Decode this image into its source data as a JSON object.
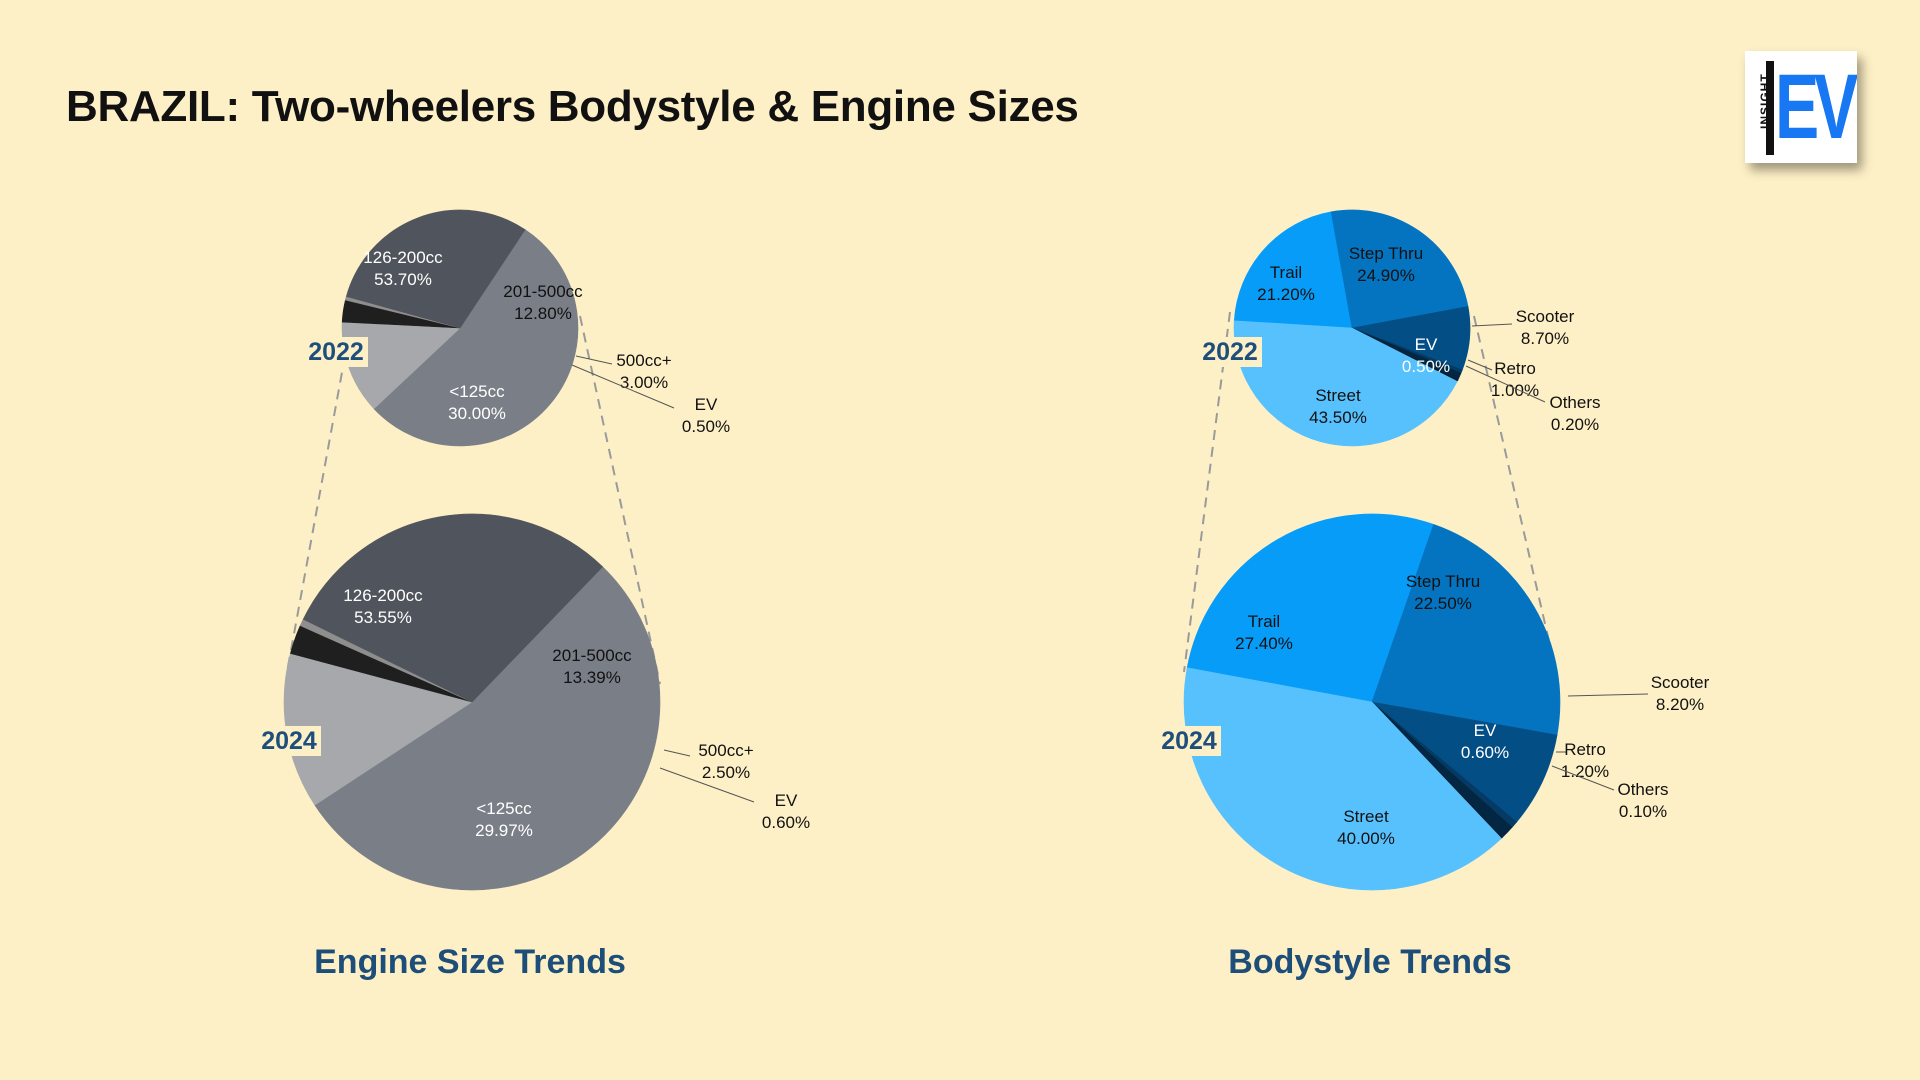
{
  "title": "BRAZIL: Two-wheelers Bodystyle & Engine Sizes",
  "logo": {
    "small_text": "INSIGHT",
    "big_text": "EV",
    "color": "#1877F2"
  },
  "chart_data": [
    {
      "type": "pie",
      "title": "Engine Size Trends",
      "pies": [
        {
          "year": "2022",
          "slices": [
            {
              "label": "126-200cc",
              "value": 53.7,
              "value_label": "53.70%",
              "color": "#7A7F87"
            },
            {
              "label": "201-500cc",
              "value": 12.8,
              "value_label": "12.80%",
              "color": "#A6A8AB"
            },
            {
              "label": "500cc+",
              "value": 3.0,
              "value_label": "3.00%",
              "color": "#1F1F1F"
            },
            {
              "label": "EV",
              "value": 0.5,
              "value_label": "0.50%",
              "color": "#8E8E8E"
            },
            {
              "label": "<125cc",
              "value": 30.0,
              "value_label": "30.00%",
              "color": "#50555D"
            }
          ]
        },
        {
          "year": "2024",
          "slices": [
            {
              "label": "126-200cc",
              "value": 53.55,
              "value_label": "53.55%",
              "color": "#7A7F87"
            },
            {
              "label": "201-500cc",
              "value": 13.39,
              "value_label": "13.39%",
              "color": "#A6A8AB"
            },
            {
              "label": "500cc+",
              "value": 2.5,
              "value_label": "2.50%",
              "color": "#1F1F1F"
            },
            {
              "label": "EV",
              "value": 0.6,
              "value_label": "0.60%",
              "color": "#8E8E8E"
            },
            {
              "label": "<125cc",
              "value": 29.97,
              "value_label": "29.97%",
              "color": "#50555D"
            }
          ]
        }
      ]
    },
    {
      "type": "pie",
      "title": "Bodystyle Trends",
      "pies": [
        {
          "year": "2022",
          "slices": [
            {
              "label": "Trail",
              "value": 21.2,
              "value_label": "21.20%",
              "color": "#069CF8"
            },
            {
              "label": "Step Thru",
              "value": 24.9,
              "value_label": "24.90%",
              "color": "#0574C0"
            },
            {
              "label": "Scooter",
              "value": 8.7,
              "value_label": "8.70%",
              "color": "#044E86"
            },
            {
              "label": "EV",
              "value": 0.5,
              "value_label": "0.50%",
              "color": "#043A63"
            },
            {
              "label": "Retro",
              "value": 1.0,
              "value_label": "1.00%",
              "color": "#032642"
            },
            {
              "label": "Others",
              "value": 0.2,
              "value_label": "0.20%",
              "color": "#0A1A2A"
            },
            {
              "label": "Street",
              "value": 43.5,
              "value_label": "43.50%",
              "color": "#57C1FE"
            }
          ]
        },
        {
          "year": "2024",
          "slices": [
            {
              "label": "Trail",
              "value": 27.4,
              "value_label": "27.40%",
              "color": "#069CF8"
            },
            {
              "label": "Step Thru",
              "value": 22.5,
              "value_label": "22.50%",
              "color": "#0574C0"
            },
            {
              "label": "Scooter",
              "value": 8.2,
              "value_label": "8.20%",
              "color": "#044E86"
            },
            {
              "label": "EV",
              "value": 0.6,
              "value_label": "0.60%",
              "color": "#043A63"
            },
            {
              "label": "Retro",
              "value": 1.2,
              "value_label": "1.20%",
              "color": "#032642"
            },
            {
              "label": "Others",
              "value": 0.1,
              "value_label": "0.10%",
              "color": "#0A1A2A"
            },
            {
              "label": "Street",
              "value": 40.0,
              "value_label": "40.00%",
              "color": "#57C1FE"
            }
          ]
        }
      ]
    }
  ]
}
